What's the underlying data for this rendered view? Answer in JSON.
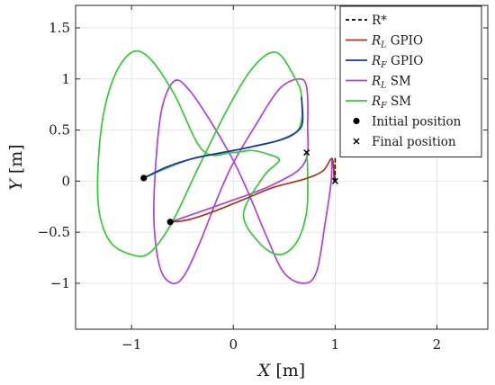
{
  "chart_data": {
    "type": "line",
    "xlabel": {
      "var": "X",
      "unit": "[m]"
    },
    "ylabel": {
      "var": "Y",
      "unit": "[m]"
    },
    "xlim": [
      -1.55,
      2.5
    ],
    "ylim": [
      -1.45,
      1.72
    ],
    "xticks": [
      -1,
      0,
      1,
      2
    ],
    "yticks": [
      1.5,
      1,
      0.5,
      0,
      -0.5,
      -1
    ],
    "xtick_labels": [
      "−1",
      "0",
      "1",
      "2"
    ],
    "ytick_labels": [
      "1.5",
      "1",
      "0.5",
      "0",
      "−0.5",
      "−1"
    ],
    "grid": true,
    "legend_position": "top-right",
    "series": [
      {
        "name": "R*",
        "legend_main": "R*",
        "legend_sub": "",
        "legend_rest": "",
        "color": "#000000",
        "style": "dashed",
        "points": [
          [
            1.0,
            0.22
          ],
          [
            1.0,
            0.0
          ]
        ]
      },
      {
        "name": "R_L GPIO",
        "legend_main": "R",
        "legend_sub": "L",
        "legend_rest": " GPIO",
        "color": "#a8361a",
        "style": "solid",
        "points": [
          [
            -0.62,
            -0.4
          ],
          [
            -0.45,
            -0.38
          ],
          [
            -0.2,
            -0.3
          ],
          [
            0.1,
            -0.18
          ],
          [
            0.4,
            -0.06
          ],
          [
            0.7,
            0.02
          ],
          [
            0.88,
            0.1
          ],
          [
            0.97,
            0.22
          ],
          [
            0.99,
            0.0
          ]
        ]
      },
      {
        "name": "R_F GPIO",
        "legend_main": "R",
        "legend_sub": "F",
        "legend_rest": " GPIO",
        "color": "#1f2fb0",
        "style": "solid",
        "points": [
          [
            -0.88,
            0.03
          ],
          [
            -0.65,
            0.14
          ],
          [
            -0.4,
            0.22
          ],
          [
            -0.1,
            0.28
          ],
          [
            0.2,
            0.34
          ],
          [
            0.45,
            0.4
          ],
          [
            0.62,
            0.48
          ],
          [
            0.68,
            0.58
          ],
          [
            0.67,
            0.82
          ]
        ]
      },
      {
        "name": "R_L SM",
        "legend_main": "R",
        "legend_sub": "L",
        "legend_rest": " SM",
        "color": "#b23fe0",
        "style": "solid",
        "points": [
          [
            -0.62,
            -0.4
          ],
          [
            -0.1,
            -0.22
          ],
          [
            0.4,
            -0.03
          ],
          [
            0.7,
            0.18
          ],
          [
            0.73,
            0.55
          ],
          [
            0.72,
            0.92
          ],
          [
            0.64,
            1.0
          ],
          [
            0.45,
            0.9
          ],
          [
            0.22,
            0.55
          ],
          [
            0.0,
            0.18
          ],
          [
            -0.15,
            -0.15
          ],
          [
            -0.32,
            -0.58
          ],
          [
            -0.48,
            -0.92
          ],
          [
            -0.6,
            -1.0
          ],
          [
            -0.72,
            -0.85
          ],
          [
            -0.78,
            -0.4
          ],
          [
            -0.76,
            0.2
          ],
          [
            -0.7,
            0.72
          ],
          [
            -0.58,
            0.98
          ],
          [
            -0.44,
            0.9
          ],
          [
            -0.22,
            0.58
          ],
          [
            0.0,
            0.2
          ],
          [
            0.15,
            -0.12
          ],
          [
            0.33,
            -0.55
          ],
          [
            0.5,
            -0.9
          ],
          [
            0.7,
            -1.0
          ],
          [
            0.82,
            -0.88
          ],
          [
            0.9,
            -0.42
          ],
          [
            0.96,
            -0.02
          ],
          [
            0.97,
            0.22
          ],
          [
            1.0,
            0.0
          ]
        ]
      },
      {
        "name": "R_F SM",
        "legend_main": "R",
        "legend_sub": "F",
        "legend_rest": " SM",
        "color": "#33cc33",
        "style": "solid",
        "points": [
          [
            -0.88,
            0.03
          ],
          [
            -0.4,
            0.22
          ],
          [
            0.2,
            0.34
          ],
          [
            0.62,
            0.48
          ],
          [
            0.67,
            0.82
          ],
          [
            0.6,
            1.02
          ],
          [
            0.42,
            1.26
          ],
          [
            0.2,
            1.12
          ],
          [
            -0.05,
            0.72
          ],
          [
            -0.35,
            0.12
          ],
          [
            -0.6,
            -0.4
          ],
          [
            -0.82,
            -0.7
          ],
          [
            -1.0,
            -0.72
          ],
          [
            -1.22,
            -0.58
          ],
          [
            -1.33,
            -0.2
          ],
          [
            -1.3,
            0.5
          ],
          [
            -1.18,
            1.0
          ],
          [
            -1.0,
            1.26
          ],
          [
            -0.82,
            1.2
          ],
          [
            -0.58,
            0.85
          ],
          [
            -0.3,
            0.3
          ],
          [
            0.0,
            0.28
          ],
          [
            0.18,
            0.3
          ],
          [
            0.35,
            0.26
          ],
          [
            0.45,
            0.2
          ],
          [
            0.3,
            0.05
          ],
          [
            0.1,
            -0.32
          ],
          [
            0.25,
            -0.6
          ],
          [
            0.45,
            -0.72
          ],
          [
            0.62,
            -0.6
          ],
          [
            0.72,
            -0.3
          ],
          [
            0.73,
            0.1
          ],
          [
            0.72,
            0.28
          ]
        ]
      }
    ],
    "markers": [
      {
        "name": "Initial position",
        "shape": "dot",
        "points": [
          [
            -0.88,
            0.03
          ],
          [
            -0.62,
            -0.4
          ]
        ]
      },
      {
        "name": "Final position",
        "shape": "cross",
        "points": [
          [
            0.72,
            0.28
          ],
          [
            1.0,
            0.0
          ]
        ]
      }
    ]
  }
}
